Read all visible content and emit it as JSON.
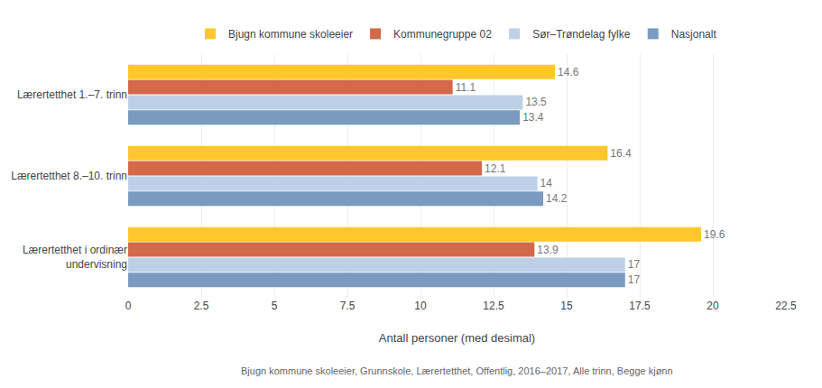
{
  "chart_data": {
    "type": "bar",
    "orientation": "horizontal",
    "categories": [
      "Lærertetthet 1.–7. trinn",
      "Lærertetthet 8.–10. trinn",
      "Lærertetthet i ordinær\nundervisning"
    ],
    "series": [
      {
        "name": "Bjugn kommune skoleeier",
        "color": "#FFC72C",
        "values": [
          14.6,
          16.4,
          19.6
        ]
      },
      {
        "name": "Kommunegruppe 02",
        "color": "#D4694A",
        "values": [
          11.1,
          12.1,
          13.9
        ]
      },
      {
        "name": "Sør–Trøndelag fylke",
        "color": "#BDD0E8",
        "values": [
          13.5,
          14.0,
          17.0
        ]
      },
      {
        "name": "Nasjonalt",
        "color": "#7A9BBF",
        "values": [
          13.4,
          14.2,
          17.0
        ]
      }
    ],
    "xlabel": "Antall personer (med desimal)",
    "xlim": [
      0,
      22.5
    ],
    "xticks": [
      0,
      2.5,
      5,
      7.5,
      10,
      12.5,
      15,
      17.5,
      20,
      22.5
    ],
    "grid": true,
    "legend": "top",
    "data_labels": true,
    "annotations": [
      "Bjugn kommune skoleeier, Grunnskole, Lærertetthet, Offentlig, 2016–2017, Alle trinn, Begge kjønn"
    ]
  }
}
